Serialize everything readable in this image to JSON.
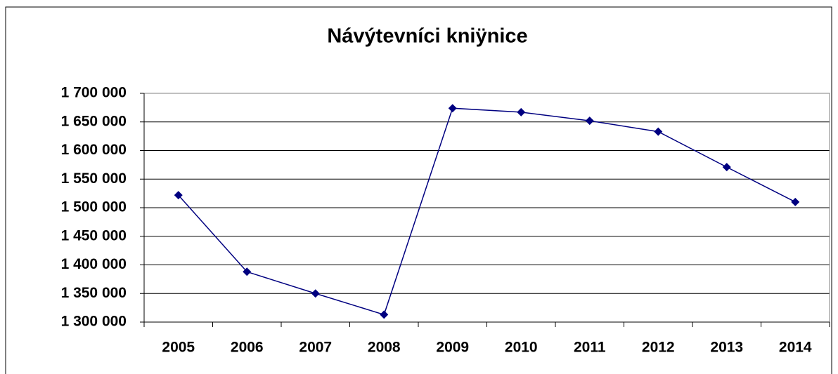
{
  "chart_data": {
    "type": "line",
    "title": "Návýtevníci kniÿnice",
    "categories": [
      "2005",
      "2006",
      "2007",
      "2008",
      "2009",
      "2010",
      "2011",
      "2012",
      "2013",
      "2014"
    ],
    "series": [
      {
        "name": null,
        "color": "#000080",
        "values": [
          1522000,
          1388000,
          1350000,
          1313000,
          1674000,
          1667000,
          1652000,
          1633000,
          1571000,
          1510000
        ]
      }
    ],
    "ylim": [
      1300000,
      1700000
    ],
    "yticks": [
      {
        "value": 1300000,
        "label": "1 300 000"
      },
      {
        "value": 1350000,
        "label": "1 350 000"
      },
      {
        "value": 1400000,
        "label": "1 400 000"
      },
      {
        "value": 1450000,
        "label": "1 450 000"
      },
      {
        "value": 1500000,
        "label": "1 500 000"
      },
      {
        "value": 1550000,
        "label": "1 550 000"
      },
      {
        "value": 1600000,
        "label": "1 600 000"
      },
      {
        "value": 1650000,
        "label": "1 650 000"
      },
      {
        "value": 1700000,
        "label": "1 700 000"
      }
    ],
    "grid": true
  }
}
